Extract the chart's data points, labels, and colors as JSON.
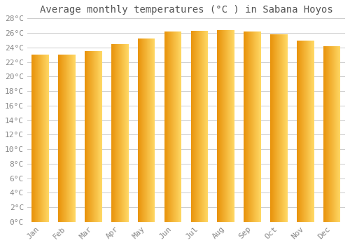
{
  "title": "Average monthly temperatures (°C ) in Sabana Hoyos",
  "months": [
    "Jan",
    "Feb",
    "Mar",
    "Apr",
    "May",
    "Jun",
    "Jul",
    "Aug",
    "Sep",
    "Oct",
    "Nov",
    "Dec"
  ],
  "temperatures": [
    23.0,
    23.0,
    23.5,
    24.5,
    25.2,
    26.2,
    26.3,
    26.4,
    26.2,
    25.8,
    24.9,
    24.2
  ],
  "bar_color_left": "#E8920A",
  "bar_color_right": "#FFD966",
  "ylim": [
    0,
    28
  ],
  "ytick_step": 2,
  "background_color": "#ffffff",
  "grid_color": "#cccccc",
  "title_fontsize": 10,
  "tick_fontsize": 8,
  "font_family": "monospace",
  "bar_width": 0.65
}
